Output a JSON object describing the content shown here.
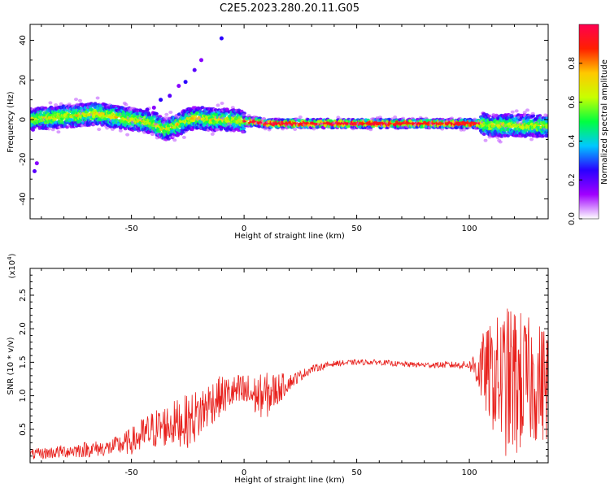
{
  "title": "C2E5.2023.280.20.11.G05",
  "charts": [
    {
      "type": "heatmap",
      "xlabel": "Height of straight line (km)",
      "ylabel": "Frequency (Hz)",
      "xlim": [
        -95,
        135
      ],
      "ylim": [
        -50,
        48
      ],
      "xticks": [
        -50,
        0,
        50,
        100
      ],
      "yticks": [
        -40,
        -20,
        0,
        20,
        40
      ],
      "colorbar": {
        "label": "Normalized spectral amplitude",
        "range": [
          0,
          1
        ],
        "ticks": [
          "0.0",
          "0.2",
          "0.4",
          "0.6",
          "0.8"
        ],
        "tick_values": [
          0,
          0.2,
          0.4,
          0.6,
          0.8
        ],
        "colormap": [
          "#ffffff",
          "#a000ff",
          "#2a00ff",
          "#00c8ff",
          "#00ff40",
          "#c8ff00",
          "#ffc800",
          "#ff2000",
          "#ff0050"
        ]
      },
      "ridge_track": {
        "x": [
          -95,
          -85,
          -75,
          -65,
          -55,
          -48,
          -40,
          -35,
          -30,
          -25,
          -20,
          -15,
          -10,
          -5,
          0,
          5,
          10,
          20,
          40,
          60,
          80,
          100,
          105,
          110,
          115,
          120,
          125,
          135
        ],
        "y": [
          0,
          1,
          2,
          3,
          1,
          0,
          -2,
          -5,
          -3,
          0,
          1,
          0,
          0,
          0,
          -1,
          -1,
          -2,
          -2,
          -2,
          -2,
          -2,
          -2,
          -2,
          -3,
          -3,
          -3,
          -3,
          -3
        ]
      },
      "scattered_points": {
        "x": [
          -19,
          -22,
          -26,
          -29,
          -33,
          -37,
          -40,
          -43,
          -10,
          -92,
          -93
        ],
        "y": [
          30,
          25,
          19,
          17,
          12,
          10,
          6,
          5,
          41,
          -22,
          -26
        ]
      }
    },
    {
      "type": "line",
      "xlabel": "Height of straight line (km)",
      "ylabel": "SNR (10 * v/v)",
      "scale_note": "(x10",
      "scale_exp": "4",
      "xlim": [
        -95,
        135
      ],
      "ylim": [
        0,
        2.9
      ],
      "xticks": [
        -50,
        0,
        50,
        100
      ],
      "yticks": [
        0.5,
        1.0,
        1.5,
        2.0,
        2.5
      ],
      "ytick_labels": [
        "0.5",
        "1.0",
        "1.5",
        "2.0",
        "2.5"
      ],
      "series": [
        {
          "color": "#e8201c",
          "envelope_x": [
            -95,
            -80,
            -70,
            -60,
            -50,
            -45,
            -40,
            -35,
            -30,
            -25,
            -20,
            -15,
            -10,
            -5,
            0,
            5,
            10,
            15,
            20,
            25,
            30,
            40,
            50,
            60,
            70,
            80,
            90,
            100,
            105,
            110,
            115,
            120,
            125,
            130,
            135
          ],
          "envelope_mean": [
            0.12,
            0.17,
            0.2,
            0.22,
            0.32,
            0.4,
            0.5,
            0.55,
            0.6,
            0.62,
            0.72,
            0.9,
            1.0,
            1.05,
            1.05,
            1.0,
            1.0,
            1.1,
            1.2,
            1.3,
            1.4,
            1.48,
            1.5,
            1.5,
            1.47,
            1.46,
            1.46,
            1.46,
            1.4,
            1.3,
            1.2,
            1.2,
            1.2,
            1.2,
            1.2
          ],
          "envelope_amplitude": [
            0.08,
            0.1,
            0.12,
            0.12,
            0.2,
            0.28,
            0.3,
            0.32,
            0.35,
            0.4,
            0.4,
            0.35,
            0.3,
            0.25,
            0.3,
            0.3,
            0.35,
            0.25,
            0.12,
            0.08,
            0.06,
            0.04,
            0.04,
            0.04,
            0.04,
            0.04,
            0.05,
            0.06,
            0.5,
            0.8,
            1.1,
            1.2,
            1.0,
            0.9,
            0.9
          ]
        }
      ]
    }
  ]
}
